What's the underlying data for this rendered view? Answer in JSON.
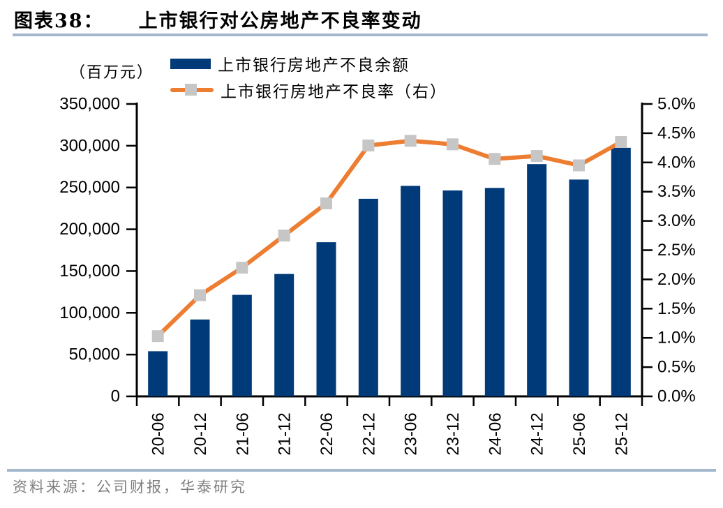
{
  "header": {
    "figure_label": "图表38：",
    "title": "上市银行对公房地产不良率变动"
  },
  "unit_label": "（百万元）",
  "legend": {
    "bar_label": "上市银行房地产不良余额",
    "line_label": "上市银行房地产不良率（右）"
  },
  "source": "资料来源：公司财报，华泰研究",
  "colors": {
    "bar": "#003a78",
    "line": "#ed7d31",
    "marker": "#c6c6c6",
    "axis": "#000000",
    "rule": "#a3b8cc",
    "source_text": "#7f7f7f"
  },
  "chart_data": {
    "type": "bar",
    "title": "上市银行对公房地产不良率变动",
    "categories": [
      "20-06",
      "20-12",
      "21-06",
      "21-12",
      "22-06",
      "22-12",
      "23-06",
      "23-12",
      "24-06",
      "24-12",
      "25-06",
      "25-12"
    ],
    "series": [
      {
        "name": "上市银行房地产不良余额",
        "type": "bar",
        "axis": "left",
        "values": [
          54000,
          92000,
          121500,
          146500,
          184500,
          236500,
          252000,
          246500,
          249500,
          278000,
          259500,
          297500
        ]
      },
      {
        "name": "上市银行房地产不良率（右）",
        "type": "line",
        "axis": "right",
        "values": [
          1.03,
          1.73,
          2.2,
          2.75,
          3.3,
          4.29,
          4.37,
          4.31,
          4.06,
          4.11,
          3.95,
          4.35
        ]
      }
    ],
    "left_axis": {
      "label": "（百万元）",
      "min": 0,
      "max": 350000,
      "step": 50000
    },
    "right_axis": {
      "min": 0,
      "max": 5,
      "step": 0.5,
      "unit": "%"
    },
    "legend_position": "top",
    "grid": false
  }
}
